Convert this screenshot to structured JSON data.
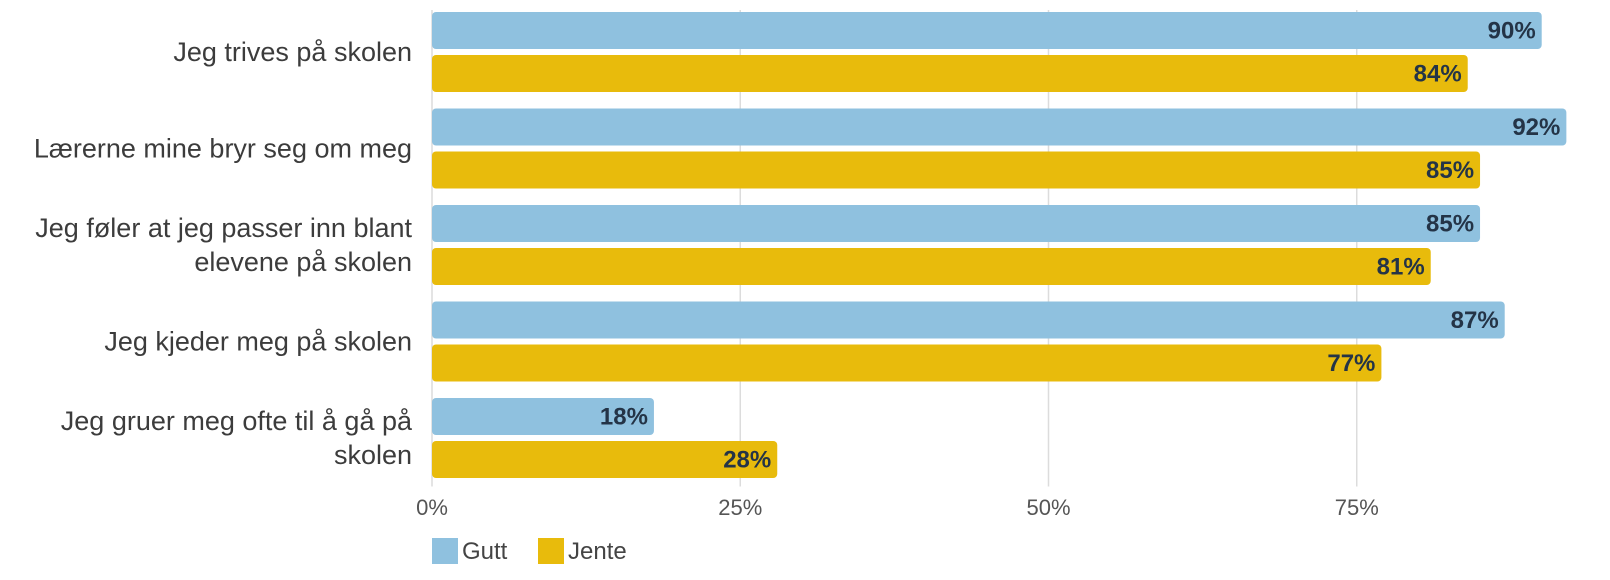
{
  "chart_data": {
    "type": "bar",
    "orientation": "horizontal",
    "categories": [
      [
        "Jeg trives på skolen"
      ],
      [
        "Lærerne mine bryr seg om meg"
      ],
      [
        "Jeg føler at jeg passer inn blant",
        "elevene på skolen"
      ],
      [
        "Jeg kjeder meg på skolen"
      ],
      [
        "Jeg gruer meg ofte til å gå på",
        "skolen"
      ]
    ],
    "series": [
      {
        "name": "Gutt",
        "color": "#8fc1df",
        "values": [
          90,
          92,
          85,
          87,
          18
        ],
        "labels": [
          "90%",
          "92%",
          "85%",
          "87%",
          "18%"
        ]
      },
      {
        "name": "Jente",
        "color": "#e8bb0c",
        "values": [
          84,
          85,
          81,
          77,
          28
        ],
        "labels": [
          "84%",
          "85%",
          "81%",
          "77%",
          "28%"
        ]
      }
    ],
    "x_ticks": [
      0,
      25,
      50,
      75
    ],
    "x_tick_labels": [
      "0%",
      "25%",
      "50%",
      "75%"
    ],
    "xlim": [
      0,
      92
    ],
    "grid": true,
    "legend": "bottom-left",
    "value_labels": true
  }
}
